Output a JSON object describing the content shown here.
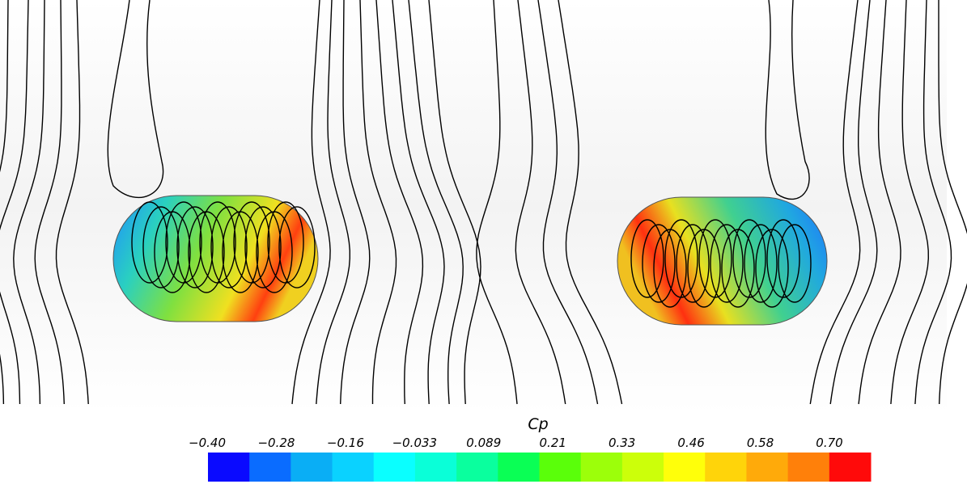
{
  "colorbar": {
    "title": "Cp",
    "ticks": [
      "−0.40",
      "−0.28",
      "−0.16",
      "−0.033",
      "0.089",
      "0.21",
      "0.33",
      "0.46",
      "0.58",
      "0.70"
    ],
    "colors": [
      "#0a0aff",
      "#0a6cff",
      "#0aaef5",
      "#0ad2ff",
      "#0affff",
      "#0affd8",
      "#0aff9e",
      "#0aff55",
      "#5aff0a",
      "#9cff0a",
      "#ccff0a",
      "#ffff0a",
      "#ffd40a",
      "#ffaa0a",
      "#ff800a",
      "#ff0a0a"
    ]
  }
}
